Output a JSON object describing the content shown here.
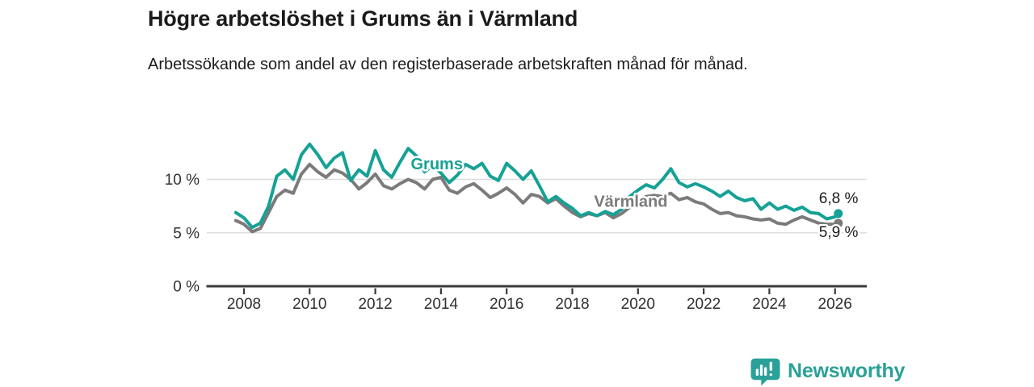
{
  "header": {
    "title": "Högre arbetslöshet i Grums än i Värmland",
    "subtitle": "Arbetssökande som andel av den registerbaserade arbetskraften månad för månad."
  },
  "footer": {
    "brand": "Newsworthy"
  },
  "colors": {
    "grums": "#16a195",
    "varmland": "#7b7b7b",
    "axis": "#3a3a3a",
    "axis_text": "#2f2f2f",
    "grid": "#dcdcdc",
    "value_label": "#1d1d1d",
    "logo": "#2aa198"
  },
  "chart_data": {
    "type": "line",
    "title": "Högre arbetslöshet i Grums än i Värmland",
    "xlabel": "",
    "ylabel": "Arbetssökande som andel av den registerbaserade arbetskraften",
    "unit": "%",
    "xlim": [
      2007.6,
      2027.0
    ],
    "ylim": [
      0,
      14
    ],
    "grid": "horizontal",
    "legend_position": "inline-labels",
    "x_ticks": [
      2008,
      2010,
      2012,
      2014,
      2016,
      2018,
      2020,
      2022,
      2024,
      2026
    ],
    "y_ticks": [
      {
        "value": 0,
        "label": "0 %"
      },
      {
        "value": 5,
        "label": "5 %"
      },
      {
        "value": 10,
        "label": "10 %"
      }
    ],
    "x": [
      2007.75,
      2008,
      2008.25,
      2008.5,
      2008.75,
      2009,
      2009.25,
      2009.5,
      2009.75,
      2010,
      2010.25,
      2010.5,
      2010.75,
      2011,
      2011.25,
      2011.5,
      2011.75,
      2012,
      2012.25,
      2012.5,
      2012.75,
      2013,
      2013.25,
      2013.5,
      2013.75,
      2014,
      2014.25,
      2014.5,
      2014.75,
      2015,
      2015.25,
      2015.5,
      2015.75,
      2016,
      2016.25,
      2016.5,
      2016.75,
      2017,
      2017.25,
      2017.5,
      2017.75,
      2018,
      2018.25,
      2018.5,
      2018.75,
      2019,
      2019.25,
      2019.5,
      2019.75,
      2020,
      2020.25,
      2020.5,
      2020.75,
      2021,
      2021.25,
      2021.5,
      2021.75,
      2022,
      2022.25,
      2022.5,
      2022.75,
      2023,
      2023.25,
      2023.5,
      2023.75,
      2024,
      2024.25,
      2024.5,
      2024.75,
      2025,
      2025.25,
      2025.5,
      2025.75,
      2026,
      2026.1
    ],
    "series": [
      {
        "name": "Grums",
        "color": "#16a195",
        "end_label": "6,8 %",
        "end_value": 6.8,
        "label_anchor": {
          "x": 2013.08,
          "y": 10.95
        },
        "values": [
          6.9,
          6.4,
          5.5,
          5.9,
          7.5,
          10.3,
          10.9,
          10.0,
          12.3,
          13.3,
          12.3,
          11.1,
          12.0,
          12.5,
          9.9,
          10.9,
          10.3,
          12.7,
          10.9,
          10.2,
          11.6,
          12.9,
          12.2,
          10.7,
          11.3,
          10.6,
          9.7,
          10.4,
          11.4,
          11.0,
          11.5,
          10.3,
          9.9,
          11.5,
          10.8,
          10.0,
          10.8,
          9.4,
          7.9,
          8.4,
          7.8,
          7.3,
          6.6,
          6.9,
          6.6,
          7.0,
          6.7,
          7.2,
          8.4,
          9.0,
          9.5,
          9.2,
          10.0,
          11.0,
          9.7,
          9.3,
          9.6,
          9.3,
          8.9,
          8.4,
          8.9,
          8.3,
          8.0,
          8.2,
          7.2,
          7.8,
          7.2,
          7.5,
          7.1,
          7.4,
          6.9,
          6.8,
          6.3,
          6.5,
          6.8
        ]
      },
      {
        "name": "Värmland",
        "color": "#7b7b7b",
        "end_label": "5,9 %",
        "end_value": 5.9,
        "label_anchor": {
          "x": 2018.66,
          "y": 7.45
        },
        "values": [
          6.15,
          5.8,
          5.1,
          5.4,
          6.9,
          8.4,
          9.0,
          8.7,
          10.5,
          11.4,
          10.7,
          10.2,
          10.9,
          10.6,
          10.0,
          9.1,
          9.7,
          10.5,
          9.4,
          9.1,
          9.6,
          10.0,
          9.7,
          9.1,
          10.0,
          10.2,
          9.0,
          8.7,
          9.3,
          9.6,
          9.0,
          8.3,
          8.7,
          9.2,
          8.6,
          7.8,
          8.6,
          8.4,
          7.8,
          8.2,
          7.5,
          6.9,
          6.5,
          6.8,
          6.6,
          6.9,
          6.4,
          6.8,
          7.4,
          8.0,
          8.4,
          8.5,
          8.4,
          8.7,
          8.1,
          8.3,
          7.9,
          7.7,
          7.2,
          6.8,
          6.9,
          6.6,
          6.5,
          6.3,
          6.2,
          6.3,
          5.9,
          5.8,
          6.2,
          6.5,
          6.2,
          5.9,
          5.8,
          5.8,
          5.9
        ]
      }
    ]
  }
}
